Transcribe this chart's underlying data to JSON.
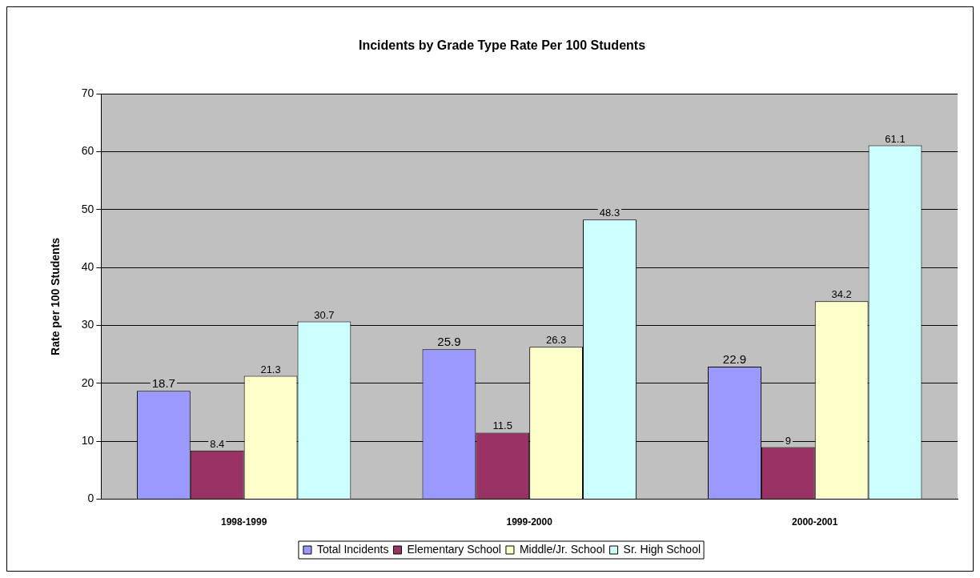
{
  "chart_data": {
    "type": "bar",
    "title": "Incidents by Grade Type Rate Per 100 Students",
    "ylabel": "Rate per 100 Students",
    "categories": [
      "1998-1999",
      "1999-2000",
      "2000-2001"
    ],
    "series": [
      {
        "name": "Total Incidents",
        "color": "#9999ff",
        "values": [
          18.7,
          25.9,
          22.9
        ]
      },
      {
        "name": "Elementary School",
        "color": "#993366",
        "values": [
          8.4,
          11.5,
          9
        ]
      },
      {
        "name": "Middle/Jr. School",
        "color": "#ffffcc",
        "values": [
          21.3,
          26.3,
          34.2
        ]
      },
      {
        "name": "Sr. High School",
        "color": "#ccffff",
        "values": [
          30.7,
          48.3,
          61.1
        ]
      }
    ],
    "ylim": [
      0,
      70
    ],
    "yticks": [
      0,
      10,
      20,
      30,
      40,
      50,
      60,
      70
    ],
    "grid": "y",
    "legend": "bottom",
    "data_labels": true
  }
}
